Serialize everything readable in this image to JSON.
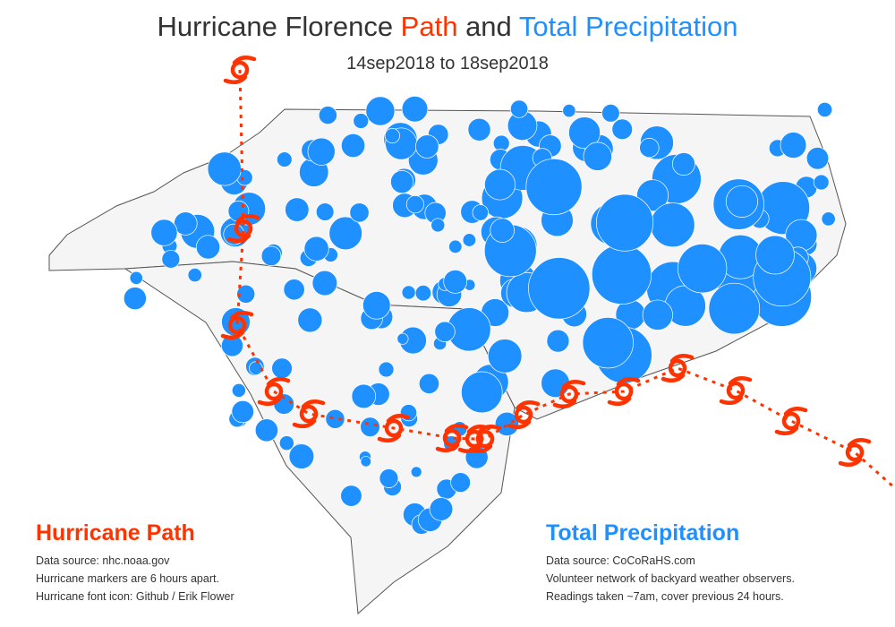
{
  "title": {
    "part1": "Hurricane Florence ",
    "part2": "Path",
    "part3": " and ",
    "part4": "Total Precipitation"
  },
  "subtitle": "14sep2018 to 18sep2018",
  "colors": {
    "path": "#ff3300",
    "precip": "#1e90ff",
    "land": "#f5f5f5",
    "border": "#555555",
    "county": "#bbbbbb"
  },
  "icons": {
    "hurricane_marker": "hurricane-icon"
  },
  "legend_path": {
    "heading": "Hurricane Path",
    "lines": [
      "Data source: nhc.noaa.gov",
      "Hurricane markers are 6 hours apart.",
      "Hurricane font icon: Github / Erik Flower"
    ]
  },
  "legend_precip": {
    "heading": "Total Precipitation",
    "lines": [
      "Data source: CoCoRaHS.com",
      "Volunteer network of backyard weather observers.",
      "Readings taken ~7am, cover previous 24 hours."
    ]
  }
}
